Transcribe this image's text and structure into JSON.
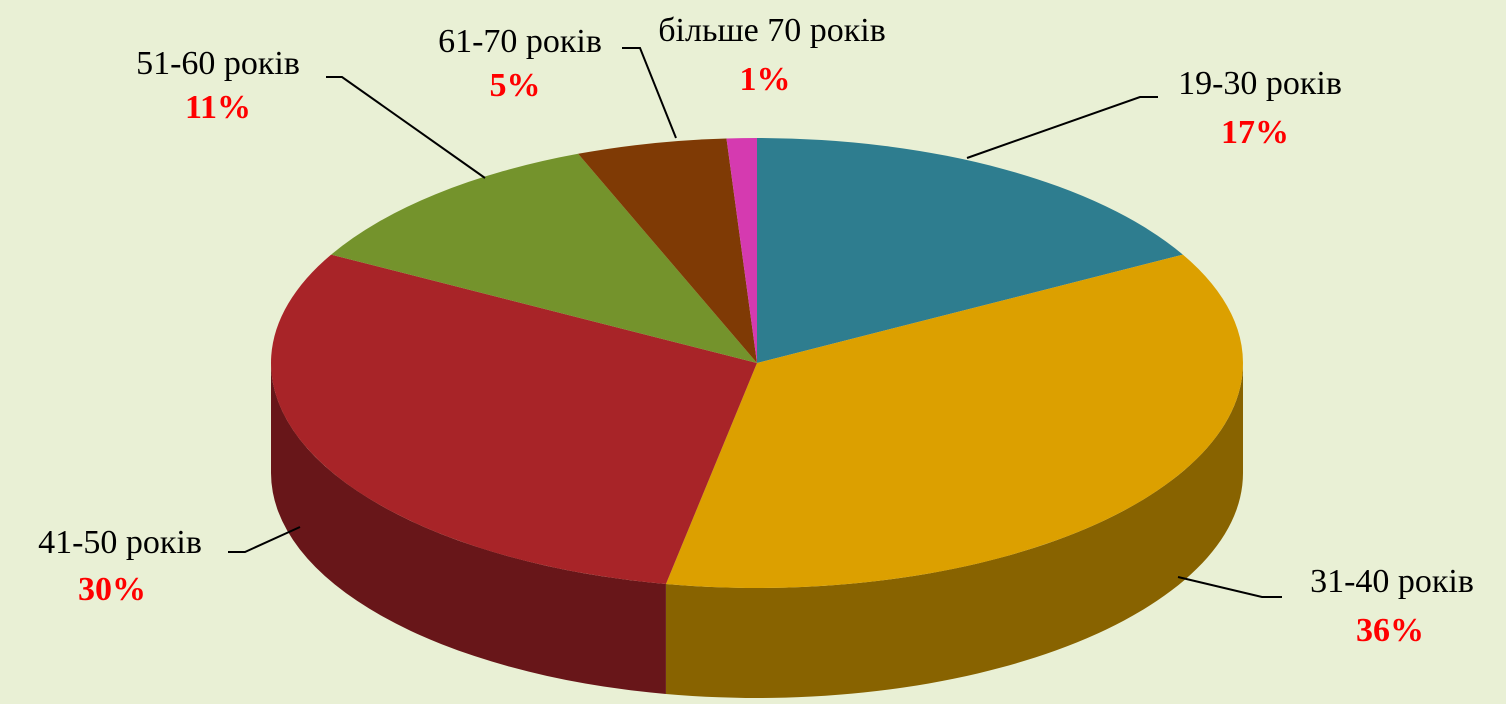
{
  "chart_data": {
    "type": "pie3d",
    "categories": [
      "19-30 років",
      "31-40 років",
      "41-50 років",
      "51-60 років",
      "61-70 років",
      "більше 70 років"
    ],
    "values": [
      17,
      36,
      30,
      11,
      5,
      1
    ],
    "value_labels": [
      "17%",
      "36%",
      "30%",
      "11%",
      "5%",
      "1%"
    ],
    "colors": [
      "#2e7d8f",
      "#dca000",
      "#a82428",
      "#74932c",
      "#7f3a05",
      "#d53ab0"
    ],
    "label_color": "#ff0000"
  }
}
